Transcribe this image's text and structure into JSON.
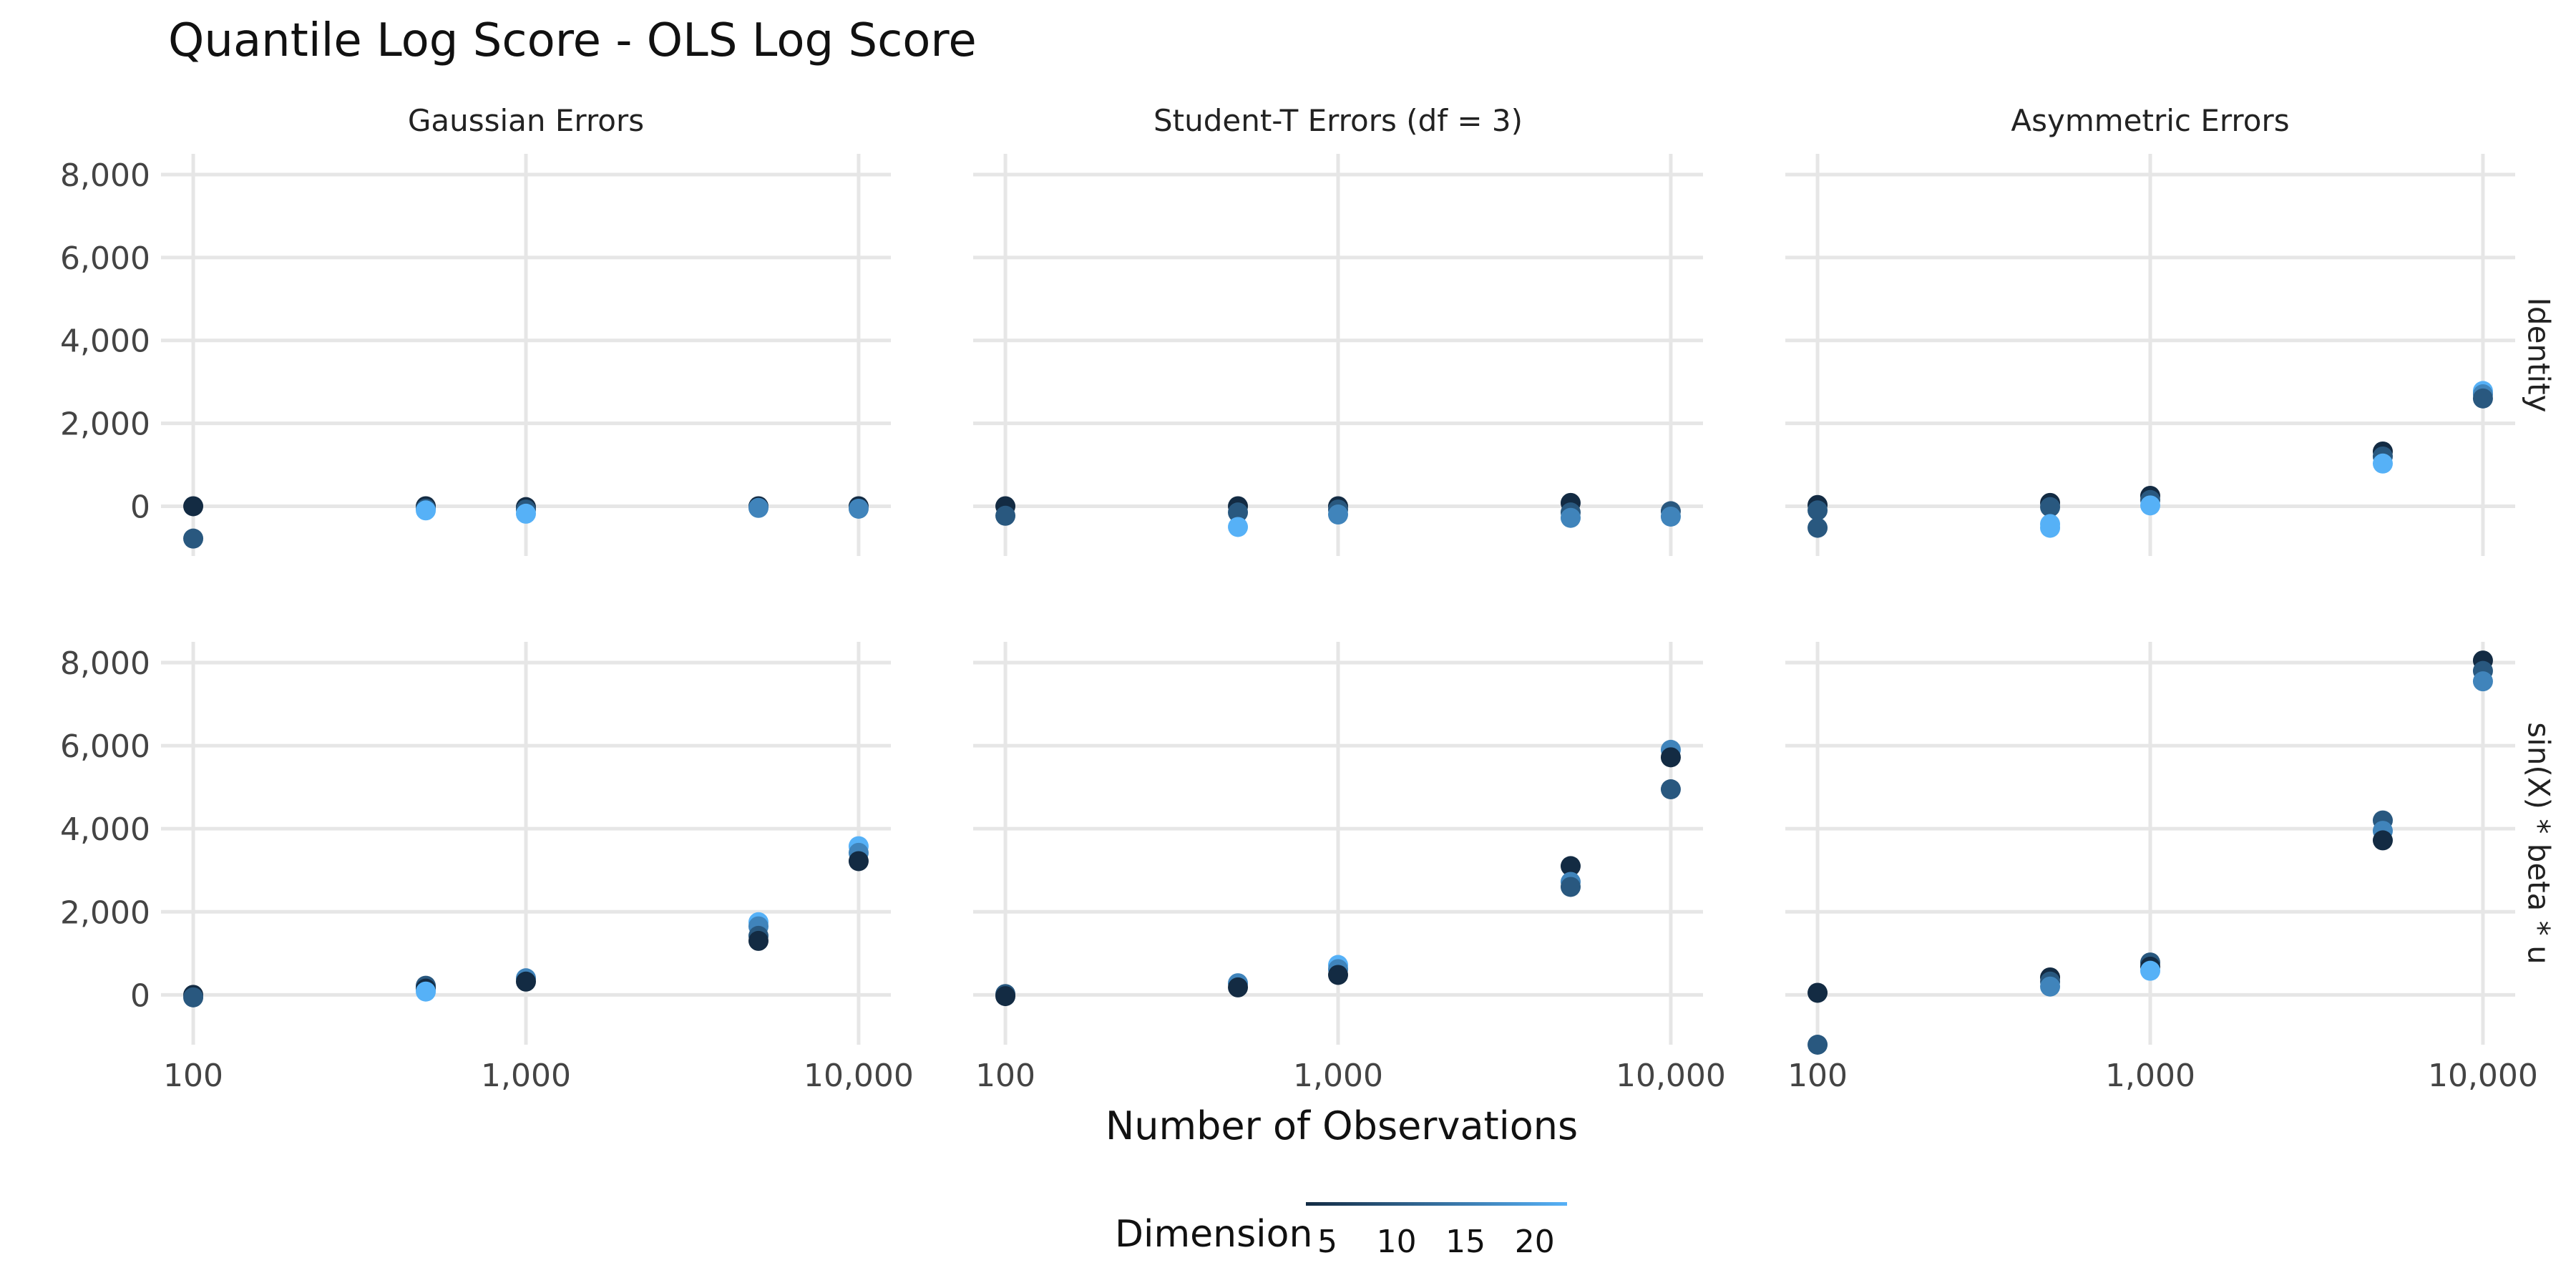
{
  "chart_data": {
    "type": "scatter",
    "title": "Quantile Log Score - OLS Log Score",
    "xlabel": "Number of Observations",
    "ylabel": "",
    "x_scale": "log10",
    "x_ticks": [
      100,
      1000,
      10000
    ],
    "x_tick_labels": [
      "100",
      "1,000",
      "10,000"
    ],
    "xlim": [
      80,
      12500
    ],
    "y_ticks": [
      0,
      2000,
      4000,
      6000,
      8000
    ],
    "y_tick_labels": [
      "0",
      "2,000",
      "4,000",
      "6,000",
      "8,000"
    ],
    "ylim_top": [
      -1200,
      8500
    ],
    "ylim_bottom": [
      -1200,
      8500
    ],
    "grid": true,
    "legend": {
      "title": "Dimension",
      "position": "bottom",
      "labels": [
        "5",
        "10",
        "15",
        "20"
      ],
      "values": [
        5,
        10,
        15,
        20
      ],
      "color_range": [
        5,
        20
      ],
      "color_low": "#132B43",
      "color_high": "#56B1F7"
    },
    "columns": [
      "Gaussian Errors",
      "Student-T Errors (df = 3)",
      "Asymmetric Errors"
    ],
    "rows": [
      "Identity",
      "sin(X) * beta * u"
    ],
    "panels": [
      {
        "row": 0,
        "col": 0,
        "points": [
          {
            "x": 100,
            "y": 0,
            "d": 5
          },
          {
            "x": 100,
            "y": -780,
            "d": 10
          },
          {
            "x": 500,
            "y": 0,
            "d": 5
          },
          {
            "x": 500,
            "y": -60,
            "d": 10
          },
          {
            "x": 500,
            "y": -100,
            "d": 20
          },
          {
            "x": 1000,
            "y": -20,
            "d": 5
          },
          {
            "x": 1000,
            "y": -80,
            "d": 10
          },
          {
            "x": 1000,
            "y": -180,
            "d": 20
          },
          {
            "x": 5000,
            "y": 0,
            "d": 5
          },
          {
            "x": 5000,
            "y": -40,
            "d": 15
          },
          {
            "x": 10000,
            "y": 0,
            "d": 5
          },
          {
            "x": 10000,
            "y": -60,
            "d": 15
          }
        ]
      },
      {
        "row": 0,
        "col": 1,
        "points": [
          {
            "x": 100,
            "y": 0,
            "d": 5
          },
          {
            "x": 100,
            "y": -230,
            "d": 10
          },
          {
            "x": 500,
            "y": 0,
            "d": 5
          },
          {
            "x": 500,
            "y": -150,
            "d": 10
          },
          {
            "x": 500,
            "y": -500,
            "d": 20
          },
          {
            "x": 1000,
            "y": 0,
            "d": 5
          },
          {
            "x": 1000,
            "y": -80,
            "d": 10
          },
          {
            "x": 1000,
            "y": -200,
            "d": 15
          },
          {
            "x": 5000,
            "y": 80,
            "d": 5
          },
          {
            "x": 5000,
            "y": -150,
            "d": 10
          },
          {
            "x": 5000,
            "y": -280,
            "d": 15
          },
          {
            "x": 10000,
            "y": -120,
            "d": 10
          },
          {
            "x": 10000,
            "y": -250,
            "d": 15
          }
        ]
      },
      {
        "row": 0,
        "col": 2,
        "points": [
          {
            "x": 100,
            "y": 30,
            "d": 5
          },
          {
            "x": 100,
            "y": -100,
            "d": 10
          },
          {
            "x": 100,
            "y": -520,
            "d": 10
          },
          {
            "x": 500,
            "y": 80,
            "d": 5
          },
          {
            "x": 500,
            "y": -20,
            "d": 10
          },
          {
            "x": 500,
            "y": -430,
            "d": 20
          },
          {
            "x": 500,
            "y": -520,
            "d": 20
          },
          {
            "x": 1000,
            "y": 250,
            "d": 5
          },
          {
            "x": 1000,
            "y": 150,
            "d": 10
          },
          {
            "x": 1000,
            "y": 20,
            "d": 20
          },
          {
            "x": 5000,
            "y": 1320,
            "d": 5
          },
          {
            "x": 5000,
            "y": 1200,
            "d": 10
          },
          {
            "x": 5000,
            "y": 1030,
            "d": 20
          },
          {
            "x": 10000,
            "y": 2780,
            "d": 20
          },
          {
            "x": 10000,
            "y": 2700,
            "d": 15
          },
          {
            "x": 10000,
            "y": 2600,
            "d": 10
          }
        ]
      },
      {
        "row": 1,
        "col": 0,
        "points": [
          {
            "x": 100,
            "y": 0,
            "d": 5
          },
          {
            "x": 100,
            "y": -60,
            "d": 10
          },
          {
            "x": 500,
            "y": 220,
            "d": 10
          },
          {
            "x": 500,
            "y": 150,
            "d": 5
          },
          {
            "x": 500,
            "y": 80,
            "d": 20
          },
          {
            "x": 1000,
            "y": 400,
            "d": 15
          },
          {
            "x": 1000,
            "y": 320,
            "d": 5
          },
          {
            "x": 5000,
            "y": 1750,
            "d": 20
          },
          {
            "x": 5000,
            "y": 1650,
            "d": 15
          },
          {
            "x": 5000,
            "y": 1420,
            "d": 10
          },
          {
            "x": 5000,
            "y": 1300,
            "d": 5
          },
          {
            "x": 10000,
            "y": 3580,
            "d": 20
          },
          {
            "x": 10000,
            "y": 3420,
            "d": 15
          },
          {
            "x": 10000,
            "y": 3220,
            "d": 5
          }
        ]
      },
      {
        "row": 1,
        "col": 1,
        "points": [
          {
            "x": 100,
            "y": 20,
            "d": 10
          },
          {
            "x": 100,
            "y": -30,
            "d": 5
          },
          {
            "x": 500,
            "y": 280,
            "d": 15
          },
          {
            "x": 500,
            "y": 180,
            "d": 5
          },
          {
            "x": 1000,
            "y": 720,
            "d": 20
          },
          {
            "x": 1000,
            "y": 620,
            "d": 15
          },
          {
            "x": 1000,
            "y": 480,
            "d": 5
          },
          {
            "x": 5000,
            "y": 3100,
            "d": 5
          },
          {
            "x": 5000,
            "y": 2720,
            "d": 15
          },
          {
            "x": 5000,
            "y": 2600,
            "d": 10
          },
          {
            "x": 10000,
            "y": 5900,
            "d": 15
          },
          {
            "x": 10000,
            "y": 5720,
            "d": 5
          },
          {
            "x": 10000,
            "y": 4950,
            "d": 10
          }
        ]
      },
      {
        "row": 1,
        "col": 2,
        "points": [
          {
            "x": 100,
            "y": 50,
            "d": 5
          },
          {
            "x": 100,
            "y": -1200,
            "d": 10
          },
          {
            "x": 500,
            "y": 420,
            "d": 5
          },
          {
            "x": 500,
            "y": 320,
            "d": 10
          },
          {
            "x": 500,
            "y": 200,
            "d": 15
          },
          {
            "x": 1000,
            "y": 780,
            "d": 10
          },
          {
            "x": 1000,
            "y": 680,
            "d": 5
          },
          {
            "x": 1000,
            "y": 580,
            "d": 20
          },
          {
            "x": 5000,
            "y": 4200,
            "d": 10
          },
          {
            "x": 5000,
            "y": 3950,
            "d": 15
          },
          {
            "x": 5000,
            "y": 3720,
            "d": 5
          },
          {
            "x": 10000,
            "y": 8050,
            "d": 5
          },
          {
            "x": 10000,
            "y": 7800,
            "d": 10
          },
          {
            "x": 10000,
            "y": 7550,
            "d": 15
          }
        ]
      }
    ]
  }
}
